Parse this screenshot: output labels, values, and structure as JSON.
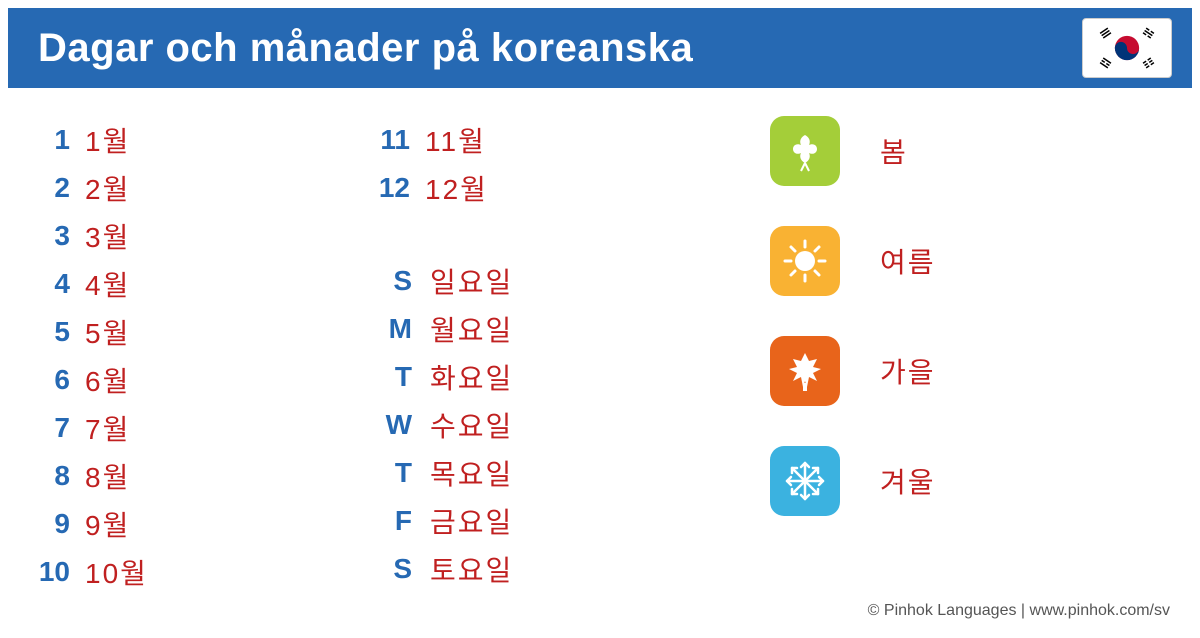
{
  "header": {
    "title": "Dagar och månader på koreanska"
  },
  "colors": {
    "header_bg": "#2669b3",
    "number_color": "#2669b3",
    "korean_color": "#c02020",
    "spring": "#a4ce39",
    "summer": "#f9b233",
    "autumn": "#e8641b",
    "winter": "#3bb2e0",
    "footer_color": "#555555"
  },
  "months_col1": [
    {
      "num": "1",
      "kor": "1월"
    },
    {
      "num": "2",
      "kor": "2월"
    },
    {
      "num": "3",
      "kor": "3월"
    },
    {
      "num": "4",
      "kor": "4월"
    },
    {
      "num": "5",
      "kor": "5월"
    },
    {
      "num": "6",
      "kor": "6월"
    },
    {
      "num": "7",
      "kor": "7월"
    },
    {
      "num": "8",
      "kor": "8월"
    },
    {
      "num": "9",
      "kor": "9월"
    },
    {
      "num": "10",
      "kor": "10월"
    }
  ],
  "months_col2": [
    {
      "num": "11",
      "kor": "11월"
    },
    {
      "num": "12",
      "kor": "12월"
    }
  ],
  "days": [
    {
      "abbr": "S",
      "kor": "일요일"
    },
    {
      "abbr": "M",
      "kor": "월요일"
    },
    {
      "abbr": "T",
      "kor": "화요일"
    },
    {
      "abbr": "W",
      "kor": "수요일"
    },
    {
      "abbr": "T",
      "kor": "목요일"
    },
    {
      "abbr": "F",
      "kor": "금요일"
    },
    {
      "abbr": "S",
      "kor": "토요일"
    }
  ],
  "seasons": [
    {
      "label": "봄",
      "icon": "spring"
    },
    {
      "label": "여름",
      "icon": "summer"
    },
    {
      "label": "가을",
      "icon": "autumn"
    },
    {
      "label": "겨울",
      "icon": "winter"
    }
  ],
  "footer": "© Pinhok Languages | www.pinhok.com/sv"
}
